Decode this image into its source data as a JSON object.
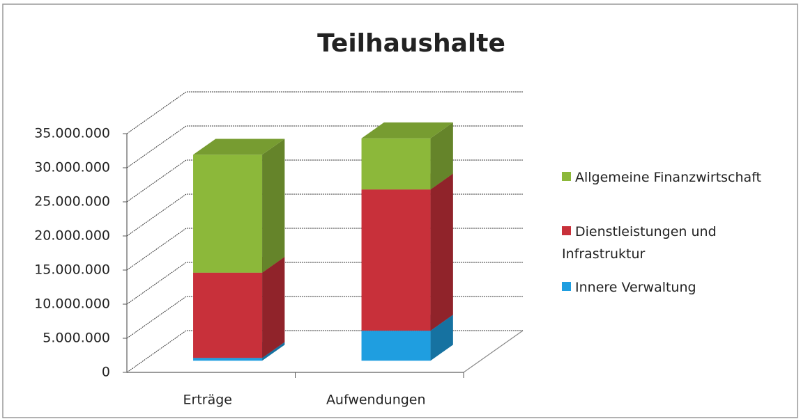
{
  "chart_data": {
    "type": "bar3d_stacked",
    "title": "Teilhaushalte",
    "categories": [
      "Erträge",
      "Aufwendungen"
    ],
    "series": [
      {
        "name": "Innere Verwaltung",
        "color": "#1f9ee0",
        "values": [
          400000,
          4400000
        ]
      },
      {
        "name": "Dienstleistungen und Infrastruktur",
        "color": "#c8303a",
        "values": [
          12500000,
          20700000
        ]
      },
      {
        "name": "Allgemeine Finanzwirtschaft",
        "color": "#8cb83a",
        "values": [
          17300000,
          7500000
        ]
      }
    ],
    "ylim": [
      0,
      35000000
    ],
    "yticks": [
      0,
      {
        "value": 5000000,
        "label": "5.000.000"
      },
      {
        "value": 10000000,
        "label": "10.000.000"
      },
      {
        "value": 15000000,
        "label": "15.000.000"
      },
      {
        "value": 20000000,
        "label": "20.000.000"
      },
      {
        "value": 25000000,
        "label": "25.000.000"
      },
      {
        "value": 30000000,
        "label": "30.000.000"
      },
      {
        "value": 35000000,
        "label": "35.000.000"
      }
    ],
    "grid": true,
    "legend": "right"
  }
}
